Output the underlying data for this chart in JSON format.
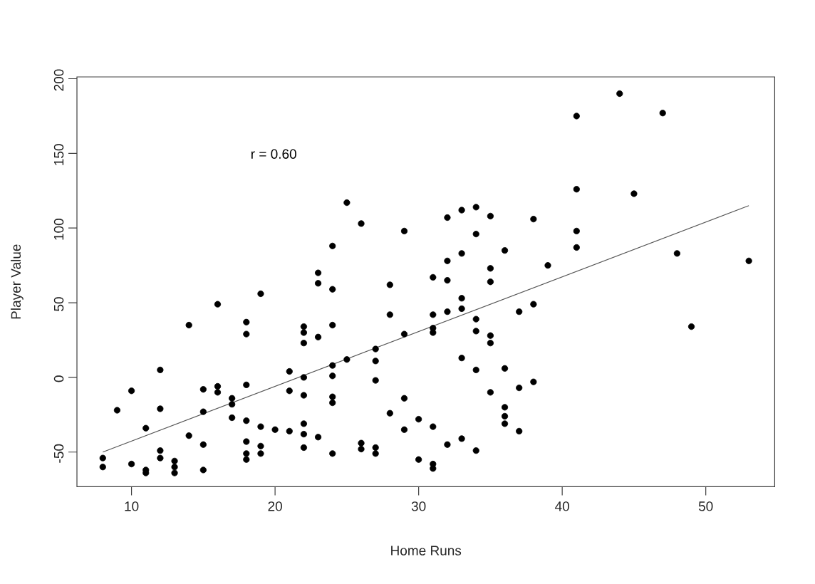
{
  "chart_data": {
    "type": "scatter",
    "xlabel": "Home Runs",
    "ylabel": "Player Value",
    "annotations": [
      "r = 0.60"
    ],
    "xlim": [
      6.2,
      54.8
    ],
    "ylim": [
      -73.2,
      201.2
    ],
    "xticks": [
      10,
      20,
      30,
      40,
      50
    ],
    "yticks": [
      -50,
      0,
      50,
      100,
      150,
      200
    ],
    "marker": "circle",
    "series": [
      {
        "type": "scatter",
        "color": "#000000",
        "x": [
          23,
          23,
          19,
          16,
          14,
          18,
          18,
          22,
          22,
          22,
          23,
          12,
          10,
          9,
          12,
          15,
          16,
          16,
          18,
          21,
          21,
          22,
          22,
          17,
          17,
          15,
          17,
          18,
          19,
          20,
          21,
          22,
          22,
          23,
          22,
          11,
          14,
          15,
          18,
          19,
          19,
          18,
          18,
          12,
          12,
          13,
          13,
          13,
          8,
          8,
          10,
          11,
          11,
          15,
          25,
          26,
          29,
          32,
          33,
          34,
          35,
          38,
          34,
          24,
          36,
          33,
          32,
          39,
          35,
          31,
          32,
          35,
          28,
          24,
          28,
          31,
          32,
          33,
          33,
          34,
          34,
          31,
          31,
          29,
          24,
          37,
          38,
          35,
          35,
          27,
          27,
          25,
          24,
          24,
          27,
          33,
          34,
          36,
          37,
          38,
          35,
          24,
          24,
          36,
          36,
          36,
          37,
          29,
          28,
          29,
          30,
          31,
          24,
          26,
          26,
          27,
          27,
          30,
          31,
          31,
          32,
          33,
          34,
          44,
          41,
          47,
          41,
          45,
          41,
          41,
          48,
          53,
          49
        ],
        "values": [
          70,
          63,
          56,
          49,
          35,
          37,
          29,
          34,
          30,
          23,
          27,
          5,
          -9,
          -22,
          -21,
          -8,
          -6,
          -10,
          -5,
          4,
          -9,
          0,
          -12,
          -14,
          -18,
          -23,
          -27,
          -29,
          -33,
          -35,
          -36,
          -31,
          -38,
          -40,
          -47,
          -34,
          -39,
          -45,
          -43,
          -46,
          -51,
          -51,
          -55,
          -49,
          -54,
          -56,
          -60,
          -64,
          -54,
          -60,
          -58,
          -62,
          -64,
          -62,
          117,
          103,
          98,
          107,
          112,
          114,
          108,
          106,
          96,
          88,
          85,
          83,
          78,
          75,
          73,
          67,
          65,
          64,
          62,
          59,
          42,
          42,
          44,
          53,
          46,
          39,
          31,
          33,
          30,
          29,
          35,
          44,
          49,
          28,
          23,
          19,
          11,
          12,
          8,
          1,
          -2,
          13,
          5,
          6,
          -7,
          -3,
          -10,
          -13,
          -17,
          -20,
          -26,
          -31,
          -36,
          -14,
          -24,
          -35,
          -28,
          -33,
          -51,
          -44,
          -48,
          -47,
          -51,
          -55,
          -58,
          -61,
          -45,
          -41,
          -49,
          190,
          175,
          177,
          126,
          123,
          98,
          87,
          83,
          78,
          34
        ]
      },
      {
        "type": "line",
        "color": "#555555",
        "marker": "none",
        "line_style": "solid",
        "x": [
          8,
          53
        ],
        "values": [
          -50,
          115
        ]
      }
    ]
  }
}
